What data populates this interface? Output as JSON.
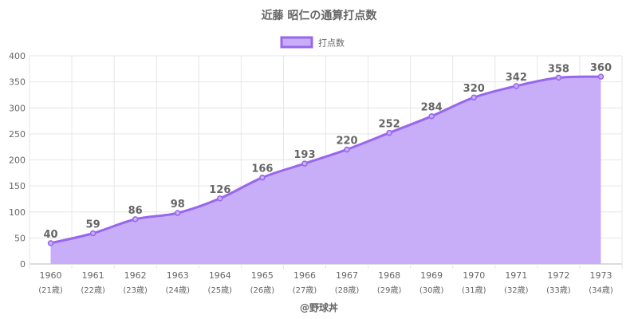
{
  "colors": {
    "line": "#9966ee",
    "fill": "#c8aef9",
    "grid": "#e6e6e6",
    "axis": "#bbbbbb",
    "text": "#666666"
  },
  "chart_data": {
    "type": "area",
    "title": "近藤 昭仁の通算打点数",
    "legend": {
      "position": "top",
      "entries": [
        "打点数"
      ]
    },
    "credit": "@野球丼",
    "x": [
      "1960",
      "1961",
      "1962",
      "1963",
      "1964",
      "1965",
      "1966",
      "1967",
      "1968",
      "1969",
      "1970",
      "1971",
      "1972",
      "1973"
    ],
    "x_sub": [
      "(21歳)",
      "(22歳)",
      "(23歳)",
      "(24歳)",
      "(25歳)",
      "(26歳)",
      "(27歳)",
      "(28歳)",
      "(29歳)",
      "(30歳)",
      "(31歳)",
      "(32歳)",
      "(33歳)",
      "(34歳)"
    ],
    "series": [
      {
        "name": "打点数",
        "values": [
          40,
          59,
          86,
          98,
          126,
          166,
          193,
          220,
          252,
          284,
          320,
          342,
          358,
          360
        ]
      }
    ],
    "ylim": [
      0,
      400
    ],
    "yticks": [
      0,
      50,
      100,
      150,
      200,
      250,
      300,
      350,
      400
    ],
    "grid": true,
    "data_labels": true
  }
}
